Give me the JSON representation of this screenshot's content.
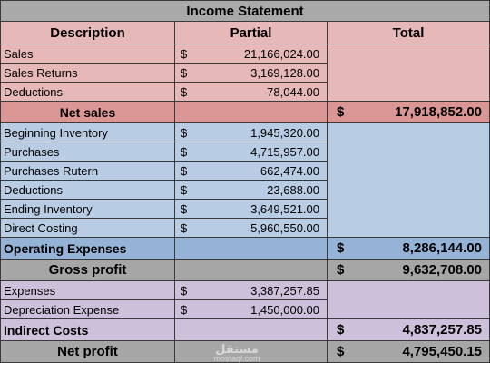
{
  "title": "Income Statement",
  "headers": {
    "description": "Description",
    "partial": "Partial",
    "total": "Total"
  },
  "currency": "$",
  "sales_rows": [
    {
      "label": "Sales",
      "amount": "21,166,024.00"
    },
    {
      "label": "Sales Returns",
      "amount": "3,169,128.00"
    },
    {
      "label": "Deductions",
      "amount": "78,044.00"
    }
  ],
  "net_sales": {
    "label": "Net sales",
    "total": "17,918,852.00"
  },
  "cost_rows": [
    {
      "label": "Beginning Inventory",
      "amount": "1,945,320.00"
    },
    {
      "label": "Purchases",
      "amount": "4,715,957.00"
    },
    {
      "label": "Purchases Rutern",
      "amount": "662,474.00"
    },
    {
      "label": "Deductions",
      "amount": "23,688.00"
    },
    {
      "label": "Ending Inventory",
      "amount": "3,649,521.00"
    },
    {
      "label": "Direct Costing",
      "amount": "5,960,550.00"
    }
  ],
  "operating_expenses": {
    "label": "Operating Expenses",
    "total": "8,286,144.00"
  },
  "gross_profit": {
    "label": "Gross profit",
    "total": "9,632,708.00"
  },
  "expense_rows": [
    {
      "label": "Expenses",
      "amount": "3,387,257.85"
    },
    {
      "label": "Depreciation Expense",
      "amount": "1,450,000.00"
    }
  ],
  "indirect_costs": {
    "label": "Indirect Costs",
    "total": "4,837,257.85"
  },
  "net_profit": {
    "label": "Net profit",
    "total": "4,795,450.15"
  },
  "watermark": {
    "arabic": "مستقل",
    "latin": "mostaql.com"
  }
}
